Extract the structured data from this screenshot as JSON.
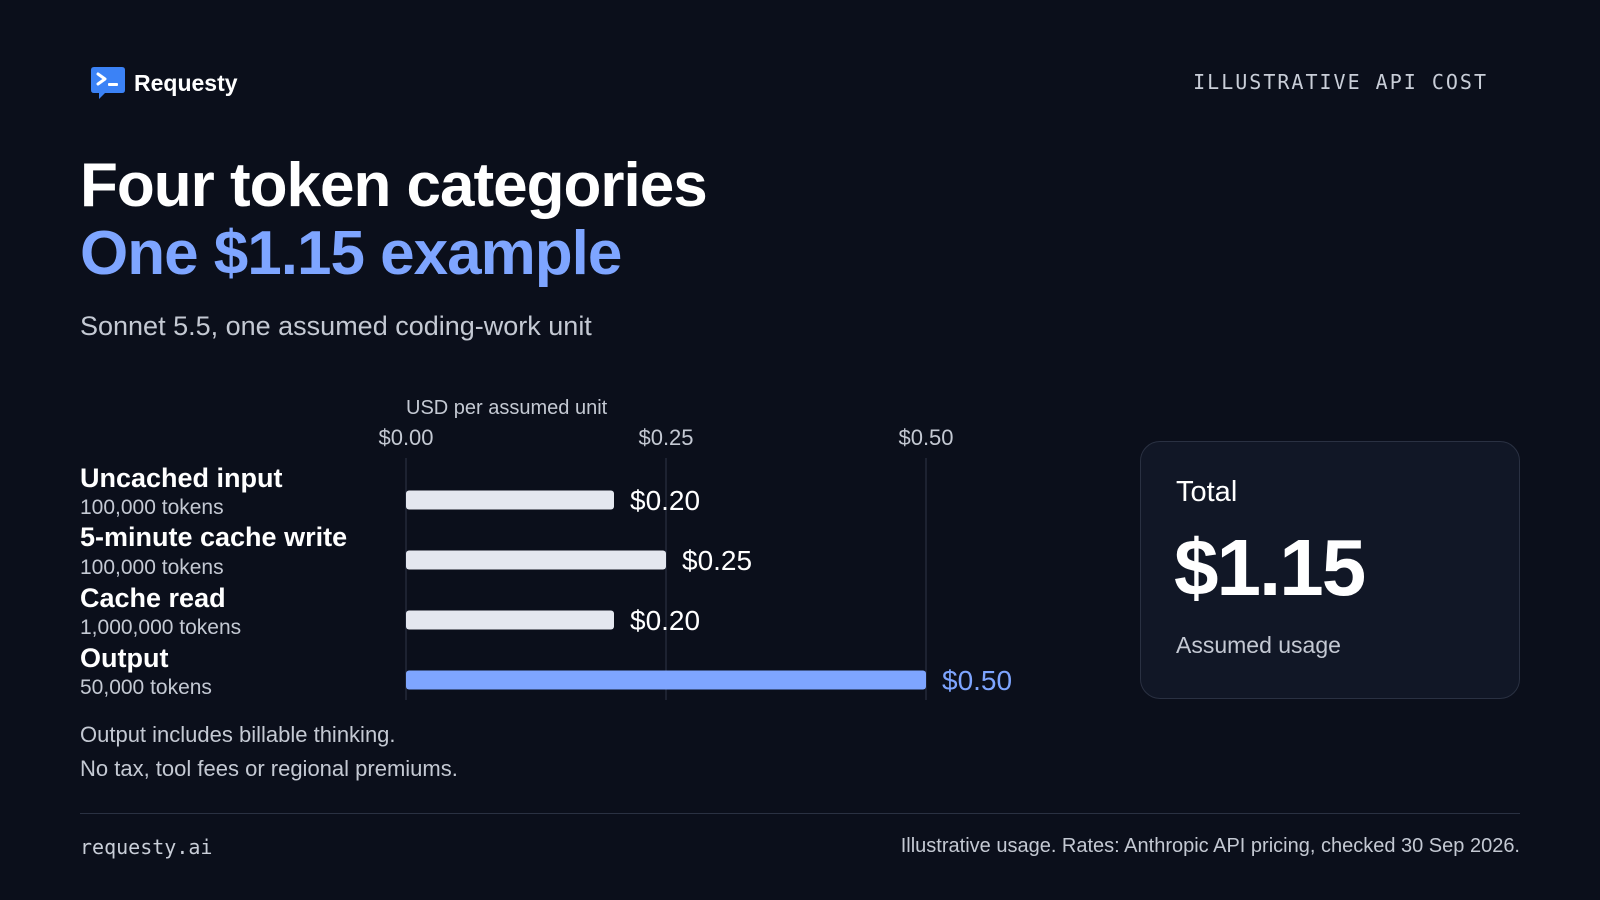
{
  "brand": {
    "name": "Requesty",
    "icon": "terminal-chat-icon"
  },
  "corner_tag": "ILLUSTRATIVE API COST",
  "title_line1": "Four token categories",
  "title_line2": "One $1.15 example",
  "subtitle": "Sonnet 5.5, one assumed coding-work unit",
  "colors": {
    "background": "#0b0f1b",
    "accent": "#7ea5ff",
    "bar_default": "#e4e7ef",
    "text_muted": "#c4c9d3"
  },
  "chart_data": {
    "type": "bar",
    "orientation": "horizontal",
    "xlabel": "USD per assumed unit",
    "xlim": [
      0,
      0.5
    ],
    "ticks": [
      0,
      0.25,
      0.5
    ],
    "tick_labels": [
      "$0.00",
      "$0.25",
      "$0.50"
    ],
    "grid": "vertical",
    "categories": [
      {
        "label": "Uncached input",
        "sublabel": "100,000 tokens",
        "value": 0.2,
        "value_label": "$0.20",
        "highlight": false
      },
      {
        "label": "5-minute cache write",
        "sublabel": "100,000 tokens",
        "value": 0.25,
        "value_label": "$0.25",
        "highlight": false
      },
      {
        "label": "Cache read",
        "sublabel": "1,000,000 tokens",
        "value": 0.2,
        "value_label": "$0.20",
        "highlight": false
      },
      {
        "label": "Output",
        "sublabel": "50,000 tokens",
        "value": 0.5,
        "value_label": "$0.50",
        "highlight": true
      }
    ]
  },
  "notes": [
    "Output includes billable thinking.",
    "No tax, tool fees or regional premiums."
  ],
  "total": {
    "label": "Total",
    "value": "$1.15",
    "sublabel": "Assumed usage"
  },
  "footer": {
    "left": "requesty.ai",
    "right": "Illustrative usage. Rates: Anthropic API pricing, checked 30 Sep 2026."
  }
}
